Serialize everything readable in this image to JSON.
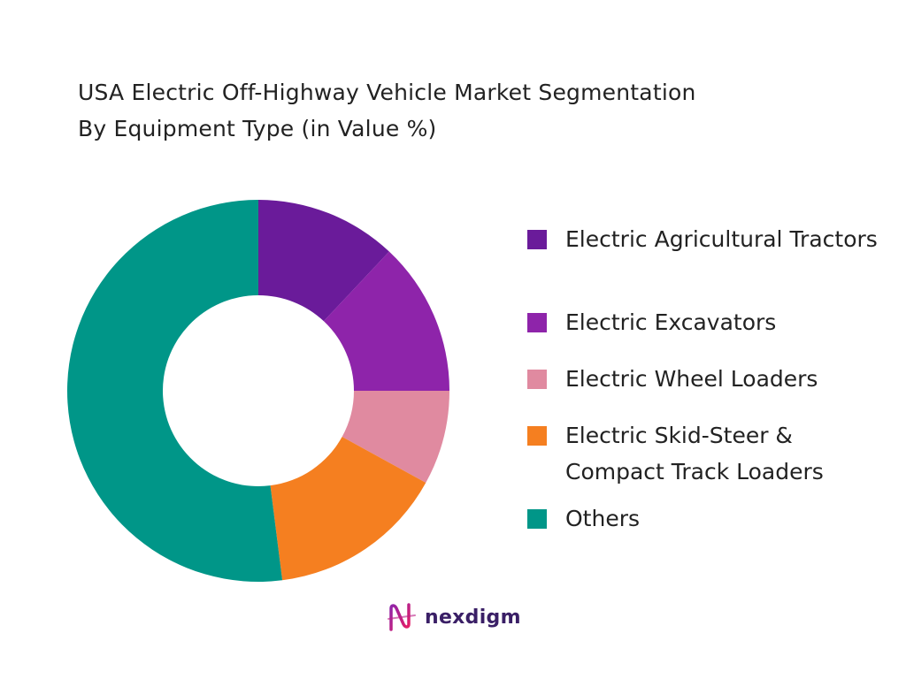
{
  "chart_data": {
    "type": "pie",
    "title_lines": [
      "USA Electric Off-Highway Vehicle Market Segmentation",
      "By Equipment Type (in Value %)"
    ],
    "categories": [
      "Electric Agricultural Tractors",
      "Electric Excavators",
      "Electric Wheel Loaders",
      "Electric Skid-Steer & Compact Track Loaders",
      "Others"
    ],
    "values": [
      12,
      13,
      8,
      15,
      52
    ],
    "unit": "%",
    "colors": [
      "#6a1b9a",
      "#8e24aa",
      "#e08aa0",
      "#f57f20",
      "#009688"
    ],
    "donut": true,
    "legend_position": "right"
  },
  "brand": {
    "name": "nexdigm",
    "logo_icon": "nexdigm-wave-icon",
    "colors": [
      "#8e24aa",
      "#e91e63"
    ]
  }
}
